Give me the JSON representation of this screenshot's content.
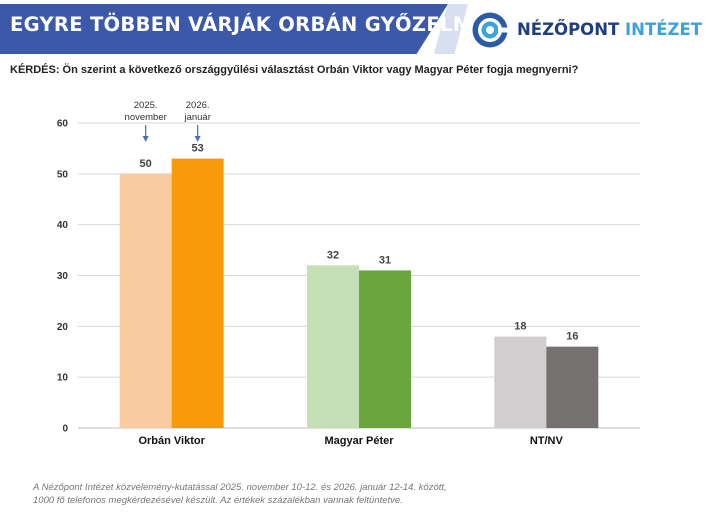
{
  "header": {
    "title": "EGYRE TÖBBEN VÁRJÁK ORBÁN GYŐZELMÉT",
    "logo_word1": "NÉZŐPONT",
    "logo_word2": "INTÉZET",
    "logo_icon": "target-logo-icon",
    "colors": {
      "banner": "#3b59a8",
      "logo_dark": "#1f3f7a",
      "logo_light": "#3aa3d9"
    }
  },
  "question": "KÉRDÉS: Ön szerint a következő országgyűlési választást Orbán Viktor vagy Magyar Péter fogja megnyerni?",
  "annotations": [
    {
      "lines": [
        "2025.",
        "november"
      ],
      "group": 0,
      "series": 0
    },
    {
      "lines": [
        "2026.",
        "január"
      ],
      "group": 0,
      "series": 1
    }
  ],
  "chart_data": {
    "type": "bar",
    "categories": [
      "Orbán Viktor",
      "Magyar Péter",
      "NT/NV"
    ],
    "series": [
      {
        "values": [
          50,
          32,
          18
        ],
        "colors": [
          "#f9cba1",
          "#c5e0b4",
          "#d0cece"
        ]
      },
      {
        "values": [
          53,
          31,
          16
        ],
        "colors": [
          "#f79a0c",
          "#6aa63b",
          "#767171"
        ]
      }
    ],
    "ylim": [
      0,
      60
    ],
    "yticks": [
      "0",
      "10",
      "20",
      "30",
      "40",
      "50",
      "60"
    ],
    "grid": true,
    "legend": "none"
  },
  "footnote": [
    "A Nézőpont Intézet közvélemény-kutatással 2025. november 10-12. és 2026. január 12-14. között,",
    "1000 fő telefonos megkérdezésével készült. Az értékek százalékban vannak feltüntetve."
  ]
}
